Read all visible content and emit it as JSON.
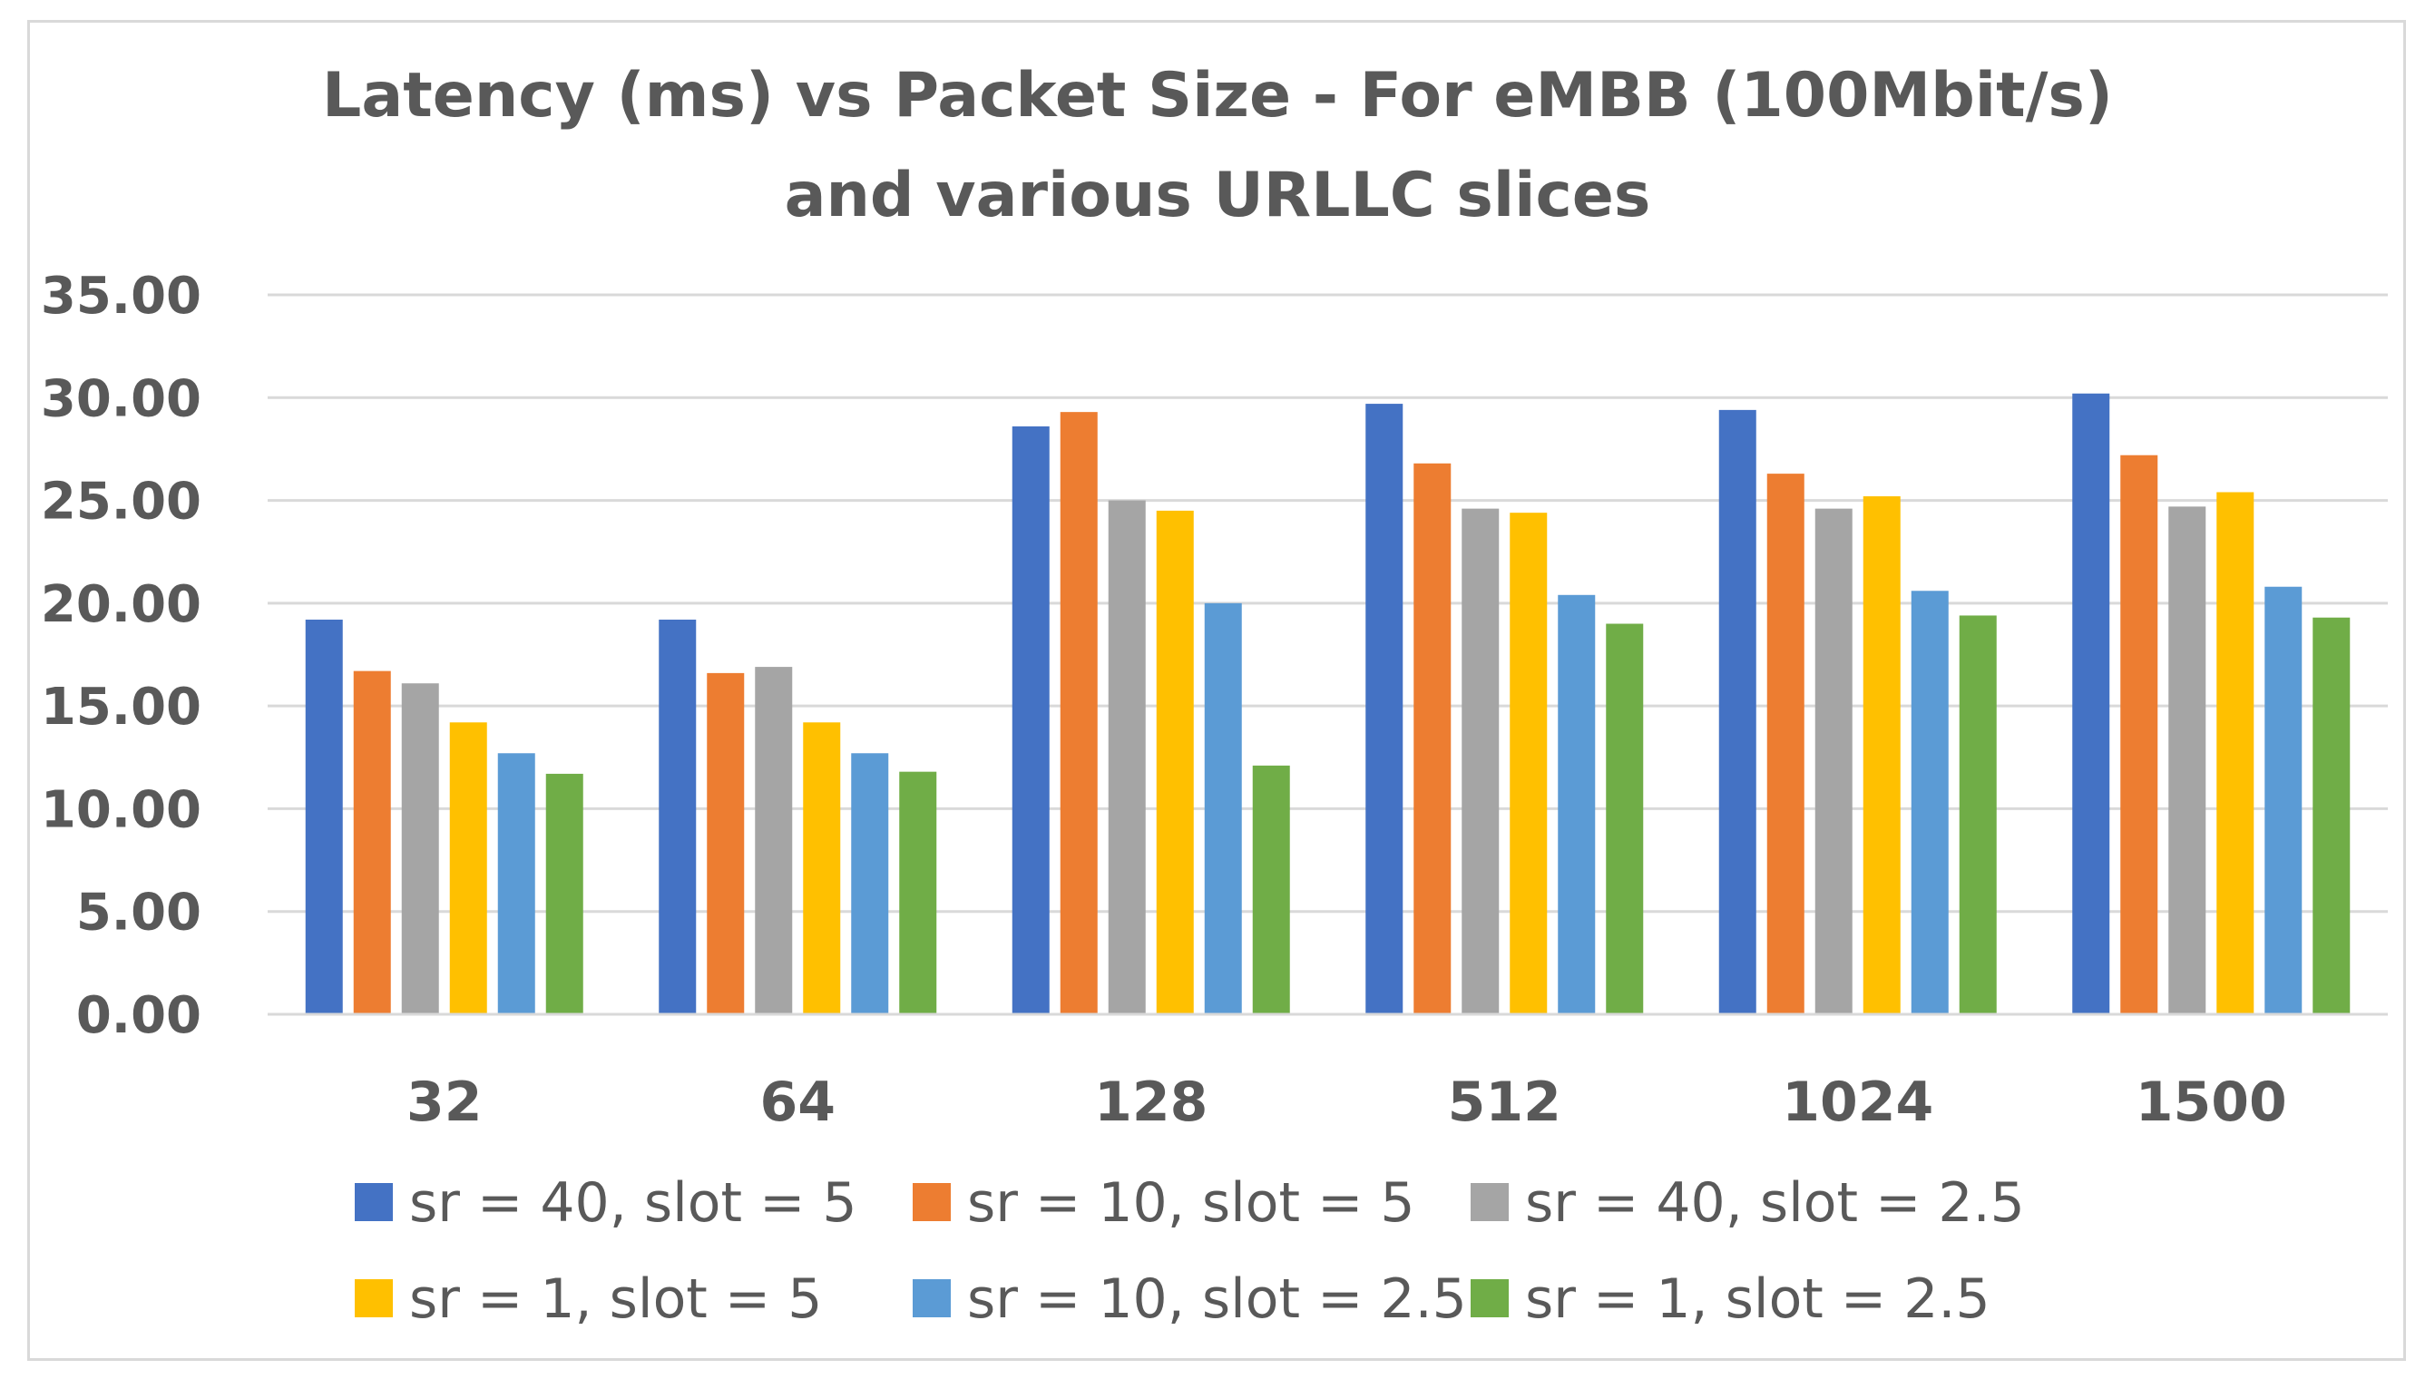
{
  "chart_data": {
    "type": "bar",
    "title_lines": [
      "Latency (ms) vs Packet Size - For eMBB (100Mbit/s)",
      "and various URLLC slices"
    ],
    "xlabel": "",
    "ylabel": "",
    "categories": [
      "32",
      "64",
      "128",
      "512",
      "1024",
      "1500"
    ],
    "ylim": [
      0,
      35
    ],
    "yticks": [
      "0.00",
      "5.00",
      "10.00",
      "15.00",
      "20.00",
      "25.00",
      "30.00",
      "35.00"
    ],
    "grid": true,
    "legend_position": "bottom",
    "series": [
      {
        "name": "sr = 40, slot = 5",
        "color": "#4472C4",
        "values": [
          19.2,
          19.2,
          28.6,
          29.7,
          29.4,
          30.2
        ]
      },
      {
        "name": "sr = 10, slot = 5",
        "color": "#ED7D31",
        "values": [
          16.7,
          16.6,
          29.3,
          26.8,
          26.3,
          27.2
        ]
      },
      {
        "name": "sr = 40, slot = 2.5",
        "color": "#A5A5A5",
        "values": [
          16.1,
          16.9,
          25.0,
          24.6,
          24.6,
          24.7
        ]
      },
      {
        "name": "sr = 1, slot = 5",
        "color": "#FFC000",
        "values": [
          14.2,
          14.2,
          24.5,
          24.4,
          25.2,
          25.4
        ]
      },
      {
        "name": "sr = 10, slot = 2.5",
        "color": "#5B9BD5",
        "values": [
          12.7,
          12.7,
          20.0,
          20.4,
          20.6,
          20.8
        ]
      },
      {
        "name": "sr = 1, slot = 2.5",
        "color": "#70AD47",
        "values": [
          11.7,
          11.8,
          12.1,
          19.0,
          19.4,
          19.3
        ]
      }
    ]
  }
}
